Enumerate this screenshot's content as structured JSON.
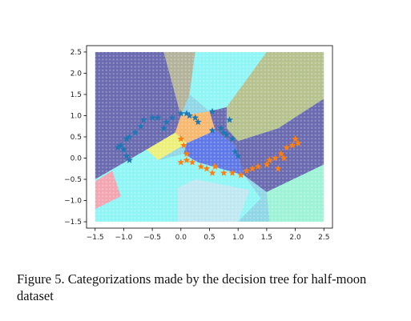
{
  "caption": "Figure 5. Categorizations made by the decision tree for half-moon dataset",
  "chart_data": {
    "type": "scatter",
    "title": "",
    "xlabel": "",
    "ylabel": "",
    "xlim": [
      -1.65,
      2.65
    ],
    "ylim": [
      -1.65,
      2.65
    ],
    "x_ticks": [
      "−1.5",
      "−1.0",
      "−0.5",
      "0.0",
      "0.5",
      "1.0",
      "1.5",
      "2.0",
      "2.5"
    ],
    "y_ticks": [
      "−1.5",
      "−1.0",
      "−0.5",
      "0.0",
      "0.5",
      "1.0",
      "1.5",
      "2.0",
      "2.5"
    ],
    "x_tick_values": [
      -1.5,
      -1.0,
      -0.5,
      0.0,
      0.5,
      1.0,
      1.5,
      2.0,
      2.5
    ],
    "y_tick_values": [
      -1.5,
      -1.0,
      -0.5,
      0.0,
      0.5,
      1.0,
      1.5,
      2.0,
      2.5
    ],
    "grid_range": [
      -1.5,
      2.5
    ],
    "regions": [
      {
        "color": "#8fd6e6",
        "polygon": [
          [
            -1.5,
            -1.5
          ],
          [
            2.5,
            -1.5
          ],
          [
            2.5,
            2.5
          ],
          [
            -1.5,
            2.5
          ]
        ]
      },
      {
        "color": "#6a6ab0",
        "polygon": [
          [
            -1.5,
            2.5
          ],
          [
            -0.3,
            2.5
          ],
          [
            0.0,
            1.0
          ],
          [
            -0.1,
            0.6
          ],
          [
            -0.6,
            0.2
          ],
          [
            -1.5,
            -0.5
          ]
        ]
      },
      {
        "color": "#b3b39b",
        "polygon": [
          [
            -0.3,
            2.5
          ],
          [
            0.25,
            2.5
          ],
          [
            0.15,
            1.5
          ],
          [
            0.0,
            1.0
          ]
        ]
      },
      {
        "color": "#8ff5f5",
        "polygon": [
          [
            0.25,
            2.5
          ],
          [
            1.5,
            2.5
          ],
          [
            0.8,
            1.2
          ],
          [
            0.5,
            1.1
          ],
          [
            0.15,
            1.5
          ]
        ]
      },
      {
        "color": "#b6c28e",
        "polygon": [
          [
            1.5,
            2.5
          ],
          [
            2.5,
            2.5
          ],
          [
            2.5,
            1.4
          ],
          [
            1.7,
            0.7
          ],
          [
            1.0,
            0.4
          ],
          [
            0.8,
            0.7
          ],
          [
            0.8,
            1.2
          ]
        ]
      },
      {
        "color": "#6a6ab0",
        "polygon": [
          [
            2.5,
            1.4
          ],
          [
            2.5,
            -0.15
          ],
          [
            1.5,
            -0.8
          ],
          [
            1.1,
            -0.4
          ],
          [
            0.95,
            0.3
          ],
          [
            1.0,
            0.4
          ],
          [
            1.7,
            0.7
          ]
        ]
      },
      {
        "color": "#6a6ab0",
        "polygon": [
          [
            0.5,
            1.1
          ],
          [
            0.8,
            1.2
          ],
          [
            0.8,
            0.7
          ],
          [
            1.0,
            0.4
          ],
          [
            0.95,
            0.3
          ],
          [
            0.6,
            0.65
          ]
        ]
      },
      {
        "color": "#f7b86f",
        "polygon": [
          [
            0.0,
            1.0
          ],
          [
            0.5,
            1.1
          ],
          [
            0.6,
            0.65
          ],
          [
            0.1,
            0.35
          ],
          [
            -0.1,
            0.6
          ]
        ]
      },
      {
        "color": "#ecf07a",
        "polygon": [
          [
            -0.1,
            0.6
          ],
          [
            0.1,
            0.35
          ],
          [
            -0.4,
            -0.05
          ],
          [
            -0.6,
            0.2
          ]
        ]
      },
      {
        "color": "#5e78e8",
        "polygon": [
          [
            0.1,
            0.35
          ],
          [
            0.6,
            0.65
          ],
          [
            0.95,
            0.3
          ],
          [
            1.1,
            -0.4
          ],
          [
            0.3,
            -0.1
          ],
          [
            0.05,
            0.1
          ]
        ]
      },
      {
        "color": "#8ff5f5",
        "polygon": [
          [
            -1.5,
            -0.5
          ],
          [
            -0.6,
            0.2
          ],
          [
            -0.4,
            -0.05
          ],
          [
            0.05,
            0.1
          ],
          [
            0.3,
            -0.1
          ],
          [
            1.1,
            -0.4
          ],
          [
            1.4,
            -0.95
          ],
          [
            1.0,
            -1.5
          ],
          [
            -1.5,
            -1.5
          ]
        ]
      },
      {
        "color": "#bfe8f2",
        "polygon": [
          [
            -0.05,
            -1.5
          ],
          [
            1.0,
            -1.5
          ],
          [
            1.2,
            -0.75
          ],
          [
            0.25,
            -0.5
          ],
          [
            -0.05,
            -0.7
          ]
        ]
      },
      {
        "color": "#f3a5b1",
        "polygon": [
          [
            -1.5,
            -0.55
          ],
          [
            -1.2,
            -0.3
          ],
          [
            -1.05,
            -0.9
          ],
          [
            -1.5,
            -1.2
          ]
        ]
      },
      {
        "color": "#9ef2d6",
        "polygon": [
          [
            1.5,
            -0.8
          ],
          [
            2.5,
            -0.15
          ],
          [
            2.5,
            -1.5
          ],
          [
            1.55,
            -1.5
          ]
        ]
      }
    ],
    "series": [
      {
        "color": "#1f77b4",
        "marker": "star",
        "points": [
          [
            -1.1,
            0.25
          ],
          [
            -1.05,
            0.3
          ],
          [
            -1.0,
            0.2
          ],
          [
            -0.95,
            0.45
          ],
          [
            -0.9,
            0.5
          ],
          [
            -0.95,
            0.05
          ],
          [
            -0.9,
            -0.05
          ],
          [
            -0.8,
            0.6
          ],
          [
            -0.7,
            0.75
          ],
          [
            -0.65,
            0.9
          ],
          [
            -0.5,
            0.95
          ],
          [
            -0.4,
            0.95
          ],
          [
            -0.3,
            0.7
          ],
          [
            -0.25,
            0.85
          ],
          [
            -0.15,
            0.95
          ],
          [
            0.0,
            1.05
          ],
          [
            0.1,
            1.05
          ],
          [
            0.15,
            1.0
          ],
          [
            0.25,
            0.95
          ],
          [
            0.3,
            0.85
          ],
          [
            0.55,
            1.1
          ],
          [
            0.55,
            0.65
          ],
          [
            0.7,
            0.7
          ],
          [
            0.8,
            0.55
          ],
          [
            0.85,
            0.9
          ],
          [
            0.9,
            0.45
          ],
          [
            0.95,
            0.15
          ],
          [
            1.0,
            0.05
          ],
          [
            0.75,
            0.6
          ]
        ]
      },
      {
        "color": "#ff7f0e",
        "marker": "star",
        "points": [
          [
            0.0,
            0.45
          ],
          [
            0.05,
            0.3
          ],
          [
            0.1,
            0.1
          ],
          [
            0.0,
            -0.1
          ],
          [
            0.1,
            -0.05
          ],
          [
            0.2,
            -0.1
          ],
          [
            0.35,
            -0.2
          ],
          [
            0.45,
            -0.25
          ],
          [
            0.55,
            -0.35
          ],
          [
            0.6,
            -0.2
          ],
          [
            0.75,
            -0.35
          ],
          [
            0.9,
            -0.35
          ],
          [
            1.05,
            -0.4
          ],
          [
            1.15,
            -0.3
          ],
          [
            1.25,
            -0.25
          ],
          [
            1.35,
            -0.2
          ],
          [
            1.5,
            -0.15
          ],
          [
            1.55,
            -0.05
          ],
          [
            1.65,
            0.0
          ],
          [
            1.75,
            0.1
          ],
          [
            1.8,
            0.0
          ],
          [
            1.85,
            0.25
          ],
          [
            1.95,
            0.3
          ],
          [
            2.0,
            0.45
          ],
          [
            2.05,
            0.35
          ],
          [
            1.7,
            -0.25
          ]
        ]
      }
    ]
  }
}
